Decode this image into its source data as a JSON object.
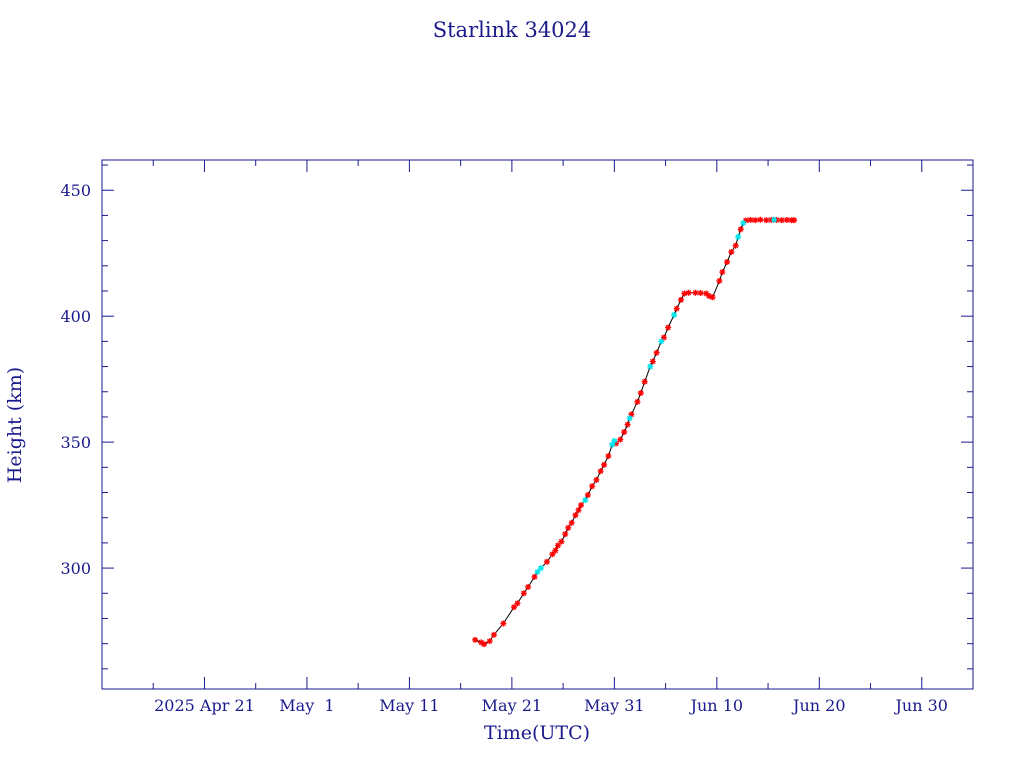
{
  "chart_data": {
    "type": "scatter",
    "title": "Starlink 34024",
    "xlabel": "Time(UTC)",
    "ylabel": "Height (km)",
    "x_ticks": [
      {
        "date": "2025-04-21",
        "label": "2025 Apr 21"
      },
      {
        "date": "2025-05-01",
        "label": "May  1"
      },
      {
        "date": "2025-05-11",
        "label": "May 11"
      },
      {
        "date": "2025-05-21",
        "label": "May 21"
      },
      {
        "date": "2025-05-31",
        "label": "May 31"
      },
      {
        "date": "2025-06-10",
        "label": "Jun 10"
      },
      {
        "date": "2025-06-20",
        "label": "Jun 20"
      },
      {
        "date": "2025-06-30",
        "label": "Jun 30"
      }
    ],
    "xlim": [
      "2025-04-11",
      "2025-07-05"
    ],
    "y_ticks": [
      300,
      350,
      400,
      450
    ],
    "ylim": [
      252,
      462
    ],
    "grid": false,
    "colors": {
      "axis": "#1a1a8c",
      "line": "#000000",
      "marker_primary": "#ff0000",
      "marker_secondary": "#00e5ee"
    },
    "series": [
      {
        "color": "#ff0000",
        "points": [
          [
            "2025-05-17T10:00",
            271.5
          ],
          [
            "2025-05-18T00:00",
            270.5
          ],
          [
            "2025-05-18T07:00",
            269.8
          ],
          [
            "2025-05-18T20:00",
            271
          ],
          [
            "2025-05-19T06:00",
            273.5
          ],
          [
            "2025-05-20T04:00",
            278
          ],
          [
            "2025-05-21T05:00",
            284.5
          ],
          [
            "2025-05-21T13:00",
            286
          ],
          [
            "2025-05-22T04:00",
            290
          ],
          [
            "2025-05-22T14:00",
            292.5
          ],
          [
            "2025-05-23T05:00",
            296.5
          ],
          [
            "2025-05-24T10:00",
            302.5
          ],
          [
            "2025-05-24T23:00",
            305.5
          ],
          [
            "2025-05-25T06:00",
            307
          ],
          [
            "2025-05-25T12:00",
            309
          ],
          [
            "2025-05-25T20:00",
            310.5
          ],
          [
            "2025-05-26T05:00",
            313.5
          ],
          [
            "2025-05-26T12:00",
            316
          ],
          [
            "2025-05-26T20:00",
            318
          ],
          [
            "2025-05-27T05:00",
            321
          ],
          [
            "2025-05-27T12:00",
            323
          ],
          [
            "2025-05-27T18:00",
            325
          ],
          [
            "2025-05-28T10:00",
            329
          ],
          [
            "2025-05-28T20:00",
            332.5
          ],
          [
            "2025-05-29T06:00",
            335
          ],
          [
            "2025-05-29T16:00",
            338.5
          ],
          [
            "2025-05-30T00:00",
            341
          ],
          [
            "2025-05-30T10:00",
            344.5
          ],
          [
            "2025-05-31T04:00",
            349.5
          ],
          [
            "2025-05-31T14:00",
            351
          ],
          [
            "2025-05-31T23:00",
            354
          ],
          [
            "2025-06-01T07:00",
            357
          ],
          [
            "2025-06-01T16:00",
            361
          ],
          [
            "2025-06-02T06:00",
            366
          ],
          [
            "2025-06-02T14:00",
            369.5
          ],
          [
            "2025-06-02T23:00",
            374
          ],
          [
            "2025-06-03T18:00",
            382
          ],
          [
            "2025-06-04T03:00",
            385.5
          ],
          [
            "2025-06-04T20:00",
            391.5
          ],
          [
            "2025-06-05T06:00",
            395.5
          ],
          [
            "2025-06-06T02:00",
            403
          ],
          [
            "2025-06-06T12:00",
            406.5
          ],
          [
            "2025-06-06T20:00",
            409
          ],
          [
            "2025-06-07T06:00",
            409.3
          ],
          [
            "2025-06-07T22:00",
            409.3
          ],
          [
            "2025-06-08T10:00",
            409.2
          ],
          [
            "2025-06-08T23:00",
            409
          ],
          [
            "2025-06-09T06:00",
            408
          ],
          [
            "2025-06-09T14:00",
            407.5
          ],
          [
            "2025-06-10T06:00",
            414
          ],
          [
            "2025-06-10T13:00",
            417.5
          ],
          [
            "2025-06-11T00:00",
            421.5
          ],
          [
            "2025-06-11T10:00",
            425.5
          ],
          [
            "2025-06-11T20:00",
            428
          ],
          [
            "2025-06-12T08:00",
            434.5
          ],
          [
            "2025-06-12T20:00",
            438
          ],
          [
            "2025-06-13T07:00",
            438.2
          ],
          [
            "2025-06-13T18:00",
            438.1
          ],
          [
            "2025-06-14T06:00",
            438.3
          ],
          [
            "2025-06-14T20:00",
            438.1
          ],
          [
            "2025-06-15T08:00",
            438.2
          ],
          [
            "2025-06-15T20:00",
            438.2
          ],
          [
            "2025-06-16T08:00",
            438.1
          ],
          [
            "2025-06-16T20:00",
            438.2
          ],
          [
            "2025-06-17T07:00",
            438.1
          ],
          [
            "2025-06-17T13:00",
            438.1
          ]
        ]
      },
      {
        "color": "#00e5ee",
        "points": [
          [
            "2025-05-23T12:00",
            298.5
          ],
          [
            "2025-05-23T20:00",
            300
          ],
          [
            "2025-05-28T04:00",
            327
          ],
          [
            "2025-05-30T19:00",
            349
          ],
          [
            "2025-05-31T00:00",
            350.5
          ],
          [
            "2025-06-01T12:00",
            359.5
          ],
          [
            "2025-06-03T12:00",
            380
          ],
          [
            "2025-06-04T14:00",
            390
          ],
          [
            "2025-06-05T20:00",
            400.5
          ],
          [
            "2025-06-12T02:00",
            431.5
          ],
          [
            "2025-06-12T14:00",
            437
          ],
          [
            "2025-06-15T14:00",
            438.3
          ]
        ]
      }
    ]
  }
}
